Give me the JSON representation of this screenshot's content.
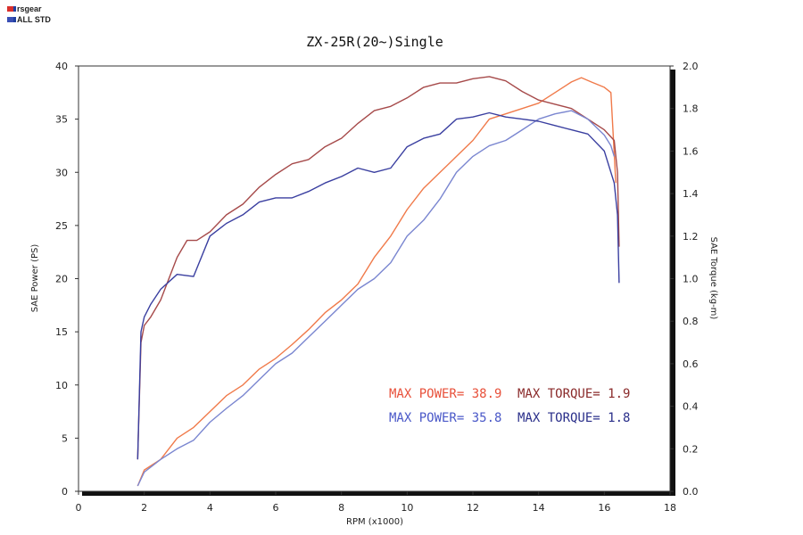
{
  "legend": [
    {
      "label": "rsgear",
      "color": "#d9302c",
      "color2": "#1f3f9f"
    },
    {
      "label": "ALL STD",
      "color": "#3a4fb5",
      "color2": "#1f3f9f"
    }
  ],
  "chart_data": {
    "type": "line",
    "title": "ZX-25R(20~)Single",
    "xlabel": "RPM (x1000)",
    "ylabel": "SAE Power (PS)",
    "y2label": "SAE Torque (kg-m)",
    "xlim": [
      0,
      18
    ],
    "ylim": [
      0,
      40
    ],
    "y2lim": [
      0,
      2.0
    ],
    "xticks": [
      "0",
      "2",
      "4",
      "6",
      "8",
      "10",
      "12",
      "14",
      "16",
      "18"
    ],
    "yticks": [
      "0",
      "5",
      "10",
      "15",
      "20",
      "25",
      "30",
      "35",
      "40"
    ],
    "y2ticks": [
      "0.0",
      "0.2",
      "0.4",
      "0.6",
      "0.8",
      "1.0",
      "1.2",
      "1.4",
      "1.6",
      "1.8",
      "2.0"
    ],
    "grid": false,
    "series": [
      {
        "name": "rsgear",
        "kind": "power",
        "axis": "left",
        "color": "#f07a4a",
        "x": [
          1.8,
          2.0,
          2.5,
          3.0,
          3.5,
          4.0,
          4.5,
          5.0,
          5.5,
          6.0,
          6.5,
          7.0,
          7.5,
          8.0,
          8.5,
          9.0,
          9.5,
          10.0,
          10.5,
          11.0,
          11.5,
          12.0,
          12.5,
          13.0,
          13.5,
          14.0,
          14.5,
          15.0,
          15.3,
          15.6,
          16.0,
          16.2,
          16.35
        ],
        "y": [
          0.5,
          2.0,
          3.0,
          5.0,
          6.0,
          7.5,
          9.0,
          10.0,
          11.5,
          12.5,
          13.8,
          15.2,
          16.8,
          18.0,
          19.5,
          22.0,
          24.0,
          26.5,
          28.5,
          30.0,
          31.5,
          33.0,
          35.0,
          35.5,
          36.0,
          36.5,
          37.5,
          38.5,
          38.9,
          38.5,
          38.0,
          37.5,
          29.0
        ]
      },
      {
        "name": "rsgear",
        "kind": "torque",
        "axis": "right",
        "color": "#a64a4a",
        "x": [
          1.8,
          1.9,
          2.0,
          2.2,
          2.5,
          3.0,
          3.3,
          3.6,
          4.0,
          4.5,
          5.0,
          5.5,
          6.0,
          6.5,
          7.0,
          7.5,
          8.0,
          8.5,
          9.0,
          9.5,
          10.0,
          10.5,
          11.0,
          11.5,
          12.0,
          12.5,
          13.0,
          13.5,
          14.0,
          14.5,
          15.0,
          15.5,
          16.0,
          16.3,
          16.4,
          16.45
        ],
        "y": [
          0.15,
          0.7,
          0.78,
          0.82,
          0.9,
          1.1,
          1.18,
          1.18,
          1.22,
          1.3,
          1.35,
          1.43,
          1.49,
          1.54,
          1.56,
          1.62,
          1.66,
          1.73,
          1.79,
          1.81,
          1.85,
          1.9,
          1.92,
          1.92,
          1.94,
          1.95,
          1.93,
          1.88,
          1.84,
          1.82,
          1.8,
          1.75,
          1.7,
          1.65,
          1.5,
          1.15
        ]
      },
      {
        "name": "ALL STD",
        "kind": "power",
        "axis": "left",
        "color": "#7a86d0",
        "x": [
          1.8,
          2.0,
          2.5,
          3.0,
          3.5,
          4.0,
          4.5,
          5.0,
          5.5,
          6.0,
          6.5,
          7.0,
          7.5,
          8.0,
          8.5,
          9.0,
          9.5,
          10.0,
          10.5,
          11.0,
          11.5,
          12.0,
          12.5,
          13.0,
          13.5,
          14.0,
          14.5,
          15.0,
          15.5,
          16.0,
          16.2,
          16.3
        ],
        "y": [
          0.5,
          1.8,
          3.0,
          4.0,
          4.8,
          6.5,
          7.8,
          9.0,
          10.5,
          12.0,
          13.0,
          14.5,
          16.0,
          17.5,
          19.0,
          20.0,
          21.5,
          24.0,
          25.5,
          27.5,
          30.0,
          31.5,
          32.5,
          33.0,
          34.0,
          35.0,
          35.5,
          35.8,
          35.0,
          33.5,
          32.5,
          31.5
        ]
      },
      {
        "name": "ALL STD",
        "kind": "torque",
        "axis": "right",
        "color": "#3a3fa0",
        "x": [
          1.8,
          1.9,
          2.0,
          2.2,
          2.5,
          3.0,
          3.5,
          4.0,
          4.5,
          5.0,
          5.5,
          6.0,
          6.5,
          7.0,
          7.5,
          8.0,
          8.5,
          9.0,
          9.5,
          10.0,
          10.5,
          11.0,
          11.5,
          12.0,
          12.5,
          13.0,
          13.5,
          14.0,
          14.5,
          15.0,
          15.5,
          16.0,
          16.3,
          16.4,
          16.45
        ],
        "y": [
          0.15,
          0.75,
          0.82,
          0.88,
          0.95,
          1.02,
          1.01,
          1.2,
          1.26,
          1.3,
          1.36,
          1.38,
          1.38,
          1.41,
          1.45,
          1.48,
          1.52,
          1.5,
          1.52,
          1.62,
          1.66,
          1.68,
          1.75,
          1.76,
          1.78,
          1.76,
          1.75,
          1.74,
          1.72,
          1.7,
          1.68,
          1.6,
          1.45,
          1.3,
          0.98
        ]
      }
    ],
    "annotations": [
      {
        "text": "MAX POWER= 38.9",
        "color": "#e8503a",
        "row": 0,
        "col": 0
      },
      {
        "text": "MAX TORQUE= 1.9",
        "color": "#8a2a2a",
        "row": 0,
        "col": 1
      },
      {
        "text": "MAX POWER= 35.8",
        "color": "#4a58c8",
        "row": 1,
        "col": 0
      },
      {
        "text": "MAX TORQUE= 1.8",
        "color": "#2a2f8a",
        "row": 1,
        "col": 1
      }
    ]
  }
}
